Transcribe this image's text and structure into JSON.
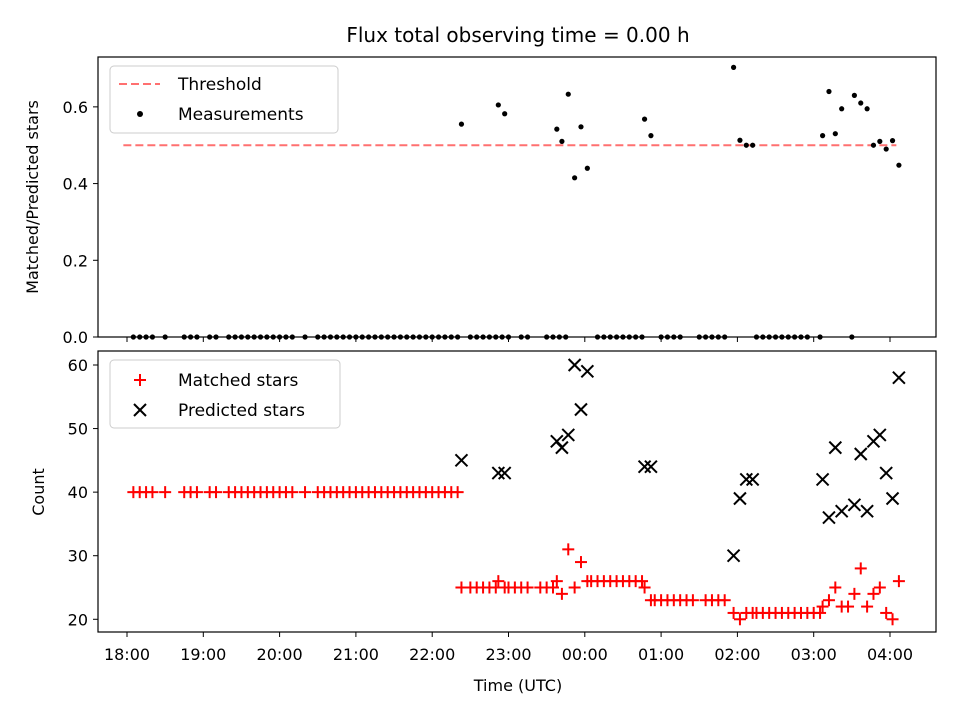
{
  "chart_data": [
    {
      "type": "scatter",
      "title": "Flux total observing time = 0.00 h",
      "ylabel": "Matched/Predicted stars",
      "xlabel": "",
      "ylim": [
        0,
        0.73
      ],
      "yticks": [
        "0.0",
        "0.2",
        "0.4",
        "0.6"
      ],
      "legend_position": "top-left",
      "threshold": {
        "name": "Threshold",
        "value": 0.5,
        "x_range": [
          "18:05",
          "04:05"
        ],
        "color": "#ff7070",
        "style": "dashed"
      },
      "series": [
        {
          "name": "Measurements",
          "color": "#000000",
          "marker": "dot",
          "points": [
            [
              "18:05",
              0
            ],
            [
              "18:10",
              0
            ],
            [
              "18:15",
              0
            ],
            [
              "18:20",
              0
            ],
            [
              "18:30",
              0
            ],
            [
              "18:45",
              0
            ],
            [
              "18:50",
              0
            ],
            [
              "18:55",
              0
            ],
            [
              "19:05",
              0
            ],
            [
              "19:10",
              0
            ],
            [
              "19:20",
              0
            ],
            [
              "19:25",
              0
            ],
            [
              "19:30",
              0
            ],
            [
              "19:35",
              0
            ],
            [
              "19:40",
              0
            ],
            [
              "19:45",
              0
            ],
            [
              "19:50",
              0
            ],
            [
              "19:55",
              0
            ],
            [
              "20:00",
              0
            ],
            [
              "20:05",
              0
            ],
            [
              "20:10",
              0
            ],
            [
              "20:20",
              0
            ],
            [
              "20:30",
              0
            ],
            [
              "20:35",
              0
            ],
            [
              "20:40",
              0
            ],
            [
              "20:45",
              0
            ],
            [
              "20:50",
              0
            ],
            [
              "20:55",
              0
            ],
            [
              "21:00",
              0
            ],
            [
              "21:05",
              0
            ],
            [
              "21:10",
              0
            ],
            [
              "21:15",
              0
            ],
            [
              "21:20",
              0
            ],
            [
              "21:25",
              0
            ],
            [
              "21:30",
              0
            ],
            [
              "21:35",
              0
            ],
            [
              "21:40",
              0
            ],
            [
              "21:45",
              0
            ],
            [
              "21:50",
              0
            ],
            [
              "21:55",
              0
            ],
            [
              "22:00",
              0
            ],
            [
              "22:05",
              0
            ],
            [
              "22:10",
              0
            ],
            [
              "22:15",
              0
            ],
            [
              "22:20",
              0
            ],
            [
              "22:30",
              0
            ],
            [
              "22:35",
              0
            ],
            [
              "22:40",
              0
            ],
            [
              "22:45",
              0
            ],
            [
              "22:50",
              0
            ],
            [
              "22:55",
              0
            ],
            [
              "23:00",
              0
            ],
            [
              "23:10",
              0
            ],
            [
              "23:15",
              0
            ],
            [
              "23:30",
              0
            ],
            [
              "23:35",
              0
            ],
            [
              "23:40",
              0
            ],
            [
              "23:45",
              0
            ],
            [
              "00:10",
              0
            ],
            [
              "00:15",
              0
            ],
            [
              "00:20",
              0
            ],
            [
              "00:25",
              0
            ],
            [
              "00:30",
              0
            ],
            [
              "00:35",
              0
            ],
            [
              "00:40",
              0
            ],
            [
              "00:45",
              0
            ],
            [
              "01:00",
              0
            ],
            [
              "01:05",
              0
            ],
            [
              "01:10",
              0
            ],
            [
              "01:15",
              0
            ],
            [
              "01:30",
              0
            ],
            [
              "01:35",
              0
            ],
            [
              "01:40",
              0
            ],
            [
              "01:45",
              0
            ],
            [
              "01:50",
              0
            ],
            [
              "02:15",
              0
            ],
            [
              "02:20",
              0
            ],
            [
              "02:25",
              0
            ],
            [
              "02:30",
              0
            ],
            [
              "02:35",
              0
            ],
            [
              "02:40",
              0
            ],
            [
              "02:45",
              0
            ],
            [
              "02:50",
              0
            ],
            [
              "02:55",
              0
            ],
            [
              "03:05",
              0
            ],
            [
              "03:30",
              0
            ],
            [
              "22:23",
              0.555
            ],
            [
              "22:52",
              0.605
            ],
            [
              "22:57",
              0.582
            ],
            [
              "23:38",
              0.542
            ],
            [
              "23:42",
              0.51
            ],
            [
              "23:47",
              0.633
            ],
            [
              "23:52",
              0.415
            ],
            [
              "23:57",
              0.548
            ],
            [
              "00:02",
              0.44
            ],
            [
              "00:47",
              0.568
            ],
            [
              "00:52",
              0.525
            ],
            [
              "01:57",
              0.703
            ],
            [
              "02:02",
              0.513
            ],
            [
              "02:07",
              0.5
            ],
            [
              "02:12",
              0.5
            ],
            [
              "03:07",
              0.525
            ],
            [
              "03:12",
              0.64
            ],
            [
              "03:17",
              0.53
            ],
            [
              "03:22",
              0.595
            ],
            [
              "03:32",
              0.63
            ],
            [
              "03:37",
              0.61
            ],
            [
              "03:42",
              0.595
            ],
            [
              "03:47",
              0.5
            ],
            [
              "03:52",
              0.51
            ],
            [
              "03:57",
              0.49
            ],
            [
              "04:02",
              0.512
            ],
            [
              "04:07",
              0.448
            ]
          ]
        }
      ]
    },
    {
      "type": "scatter",
      "title": "",
      "xlabel": "Time (UTC)",
      "ylabel": "Count",
      "ylim": [
        18,
        62.2
      ],
      "yticks": [
        "20",
        "30",
        "40",
        "50",
        "60"
      ],
      "xticks": [
        "18:00",
        "19:00",
        "20:00",
        "21:00",
        "22:00",
        "23:00",
        "00:00",
        "01:00",
        "02:00",
        "03:00",
        "04:00"
      ],
      "legend_position": "top-left",
      "series": [
        {
          "name": "Matched stars",
          "color": "#ff0000",
          "marker": "plus",
          "points": [
            [
              "18:05",
              40
            ],
            [
              "18:10",
              40
            ],
            [
              "18:15",
              40
            ],
            [
              "18:20",
              40
            ],
            [
              "18:30",
              40
            ],
            [
              "18:45",
              40
            ],
            [
              "18:50",
              40
            ],
            [
              "18:55",
              40
            ],
            [
              "19:05",
              40
            ],
            [
              "19:10",
              40
            ],
            [
              "19:20",
              40
            ],
            [
              "19:25",
              40
            ],
            [
              "19:30",
              40
            ],
            [
              "19:35",
              40
            ],
            [
              "19:40",
              40
            ],
            [
              "19:45",
              40
            ],
            [
              "19:50",
              40
            ],
            [
              "19:55",
              40
            ],
            [
              "20:00",
              40
            ],
            [
              "20:05",
              40
            ],
            [
              "20:10",
              40
            ],
            [
              "20:20",
              40
            ],
            [
              "20:30",
              40
            ],
            [
              "20:35",
              40
            ],
            [
              "20:40",
              40
            ],
            [
              "20:45",
              40
            ],
            [
              "20:50",
              40
            ],
            [
              "20:55",
              40
            ],
            [
              "21:00",
              40
            ],
            [
              "21:05",
              40
            ],
            [
              "21:10",
              40
            ],
            [
              "21:15",
              40
            ],
            [
              "21:20",
              40
            ],
            [
              "21:25",
              40
            ],
            [
              "21:30",
              40
            ],
            [
              "21:35",
              40
            ],
            [
              "21:40",
              40
            ],
            [
              "21:45",
              40
            ],
            [
              "21:50",
              40
            ],
            [
              "21:55",
              40
            ],
            [
              "22:00",
              40
            ],
            [
              "22:05",
              40
            ],
            [
              "22:10",
              40
            ],
            [
              "22:15",
              40
            ],
            [
              "22:20",
              40
            ],
            [
              "22:23",
              25
            ],
            [
              "22:30",
              25
            ],
            [
              "22:35",
              25
            ],
            [
              "22:40",
              25
            ],
            [
              "22:45",
              25
            ],
            [
              "22:50",
              25
            ],
            [
              "22:52",
              26
            ],
            [
              "22:57",
              25
            ],
            [
              "23:00",
              25
            ],
            [
              "23:05",
              25
            ],
            [
              "23:10",
              25
            ],
            [
              "23:15",
              25
            ],
            [
              "23:25",
              25
            ],
            [
              "23:30",
              25
            ],
            [
              "23:35",
              25
            ],
            [
              "23:38",
              26
            ],
            [
              "23:42",
              24
            ],
            [
              "23:47",
              31
            ],
            [
              "23:52",
              25
            ],
            [
              "23:57",
              29
            ],
            [
              "00:02",
              26
            ],
            [
              "00:05",
              26
            ],
            [
              "00:10",
              26
            ],
            [
              "00:15",
              26
            ],
            [
              "00:20",
              26
            ],
            [
              "00:25",
              26
            ],
            [
              "00:30",
              26
            ],
            [
              "00:35",
              26
            ],
            [
              "00:40",
              26
            ],
            [
              "00:45",
              26
            ],
            [
              "00:47",
              25
            ],
            [
              "00:52",
              23
            ],
            [
              "00:55",
              23
            ],
            [
              "01:00",
              23
            ],
            [
              "01:05",
              23
            ],
            [
              "01:10",
              23
            ],
            [
              "01:15",
              23
            ],
            [
              "01:20",
              23
            ],
            [
              "01:25",
              23
            ],
            [
              "01:35",
              23
            ],
            [
              "01:40",
              23
            ],
            [
              "01:45",
              23
            ],
            [
              "01:50",
              23
            ],
            [
              "01:57",
              21
            ],
            [
              "02:02",
              20
            ],
            [
              "02:07",
              21
            ],
            [
              "02:12",
              21
            ],
            [
              "02:15",
              21
            ],
            [
              "02:20",
              21
            ],
            [
              "02:25",
              21
            ],
            [
              "02:30",
              21
            ],
            [
              "02:35",
              21
            ],
            [
              "02:40",
              21
            ],
            [
              "02:45",
              21
            ],
            [
              "02:50",
              21
            ],
            [
              "02:55",
              21
            ],
            [
              "03:00",
              21
            ],
            [
              "03:05",
              21
            ],
            [
              "03:07",
              22
            ],
            [
              "03:12",
              23
            ],
            [
              "03:17",
              25
            ],
            [
              "03:22",
              22
            ],
            [
              "03:27",
              22
            ],
            [
              "03:32",
              24
            ],
            [
              "03:37",
              28
            ],
            [
              "03:42",
              22
            ],
            [
              "03:47",
              24
            ],
            [
              "03:52",
              25
            ],
            [
              "03:57",
              21
            ],
            [
              "04:02",
              20
            ],
            [
              "04:07",
              26
            ]
          ]
        },
        {
          "name": "Predicted stars",
          "color": "#000000",
          "marker": "x",
          "points": [
            [
              "22:23",
              45
            ],
            [
              "22:52",
              43
            ],
            [
              "22:57",
              43
            ],
            [
              "23:38",
              48
            ],
            [
              "23:42",
              47
            ],
            [
              "23:47",
              49
            ],
            [
              "23:52",
              60
            ],
            [
              "23:57",
              53
            ],
            [
              "00:02",
              59
            ],
            [
              "00:47",
              44
            ],
            [
              "00:52",
              44
            ],
            [
              "01:57",
              30
            ],
            [
              "02:02",
              39
            ],
            [
              "02:07",
              42
            ],
            [
              "02:12",
              42
            ],
            [
              "03:07",
              42
            ],
            [
              "03:12",
              36
            ],
            [
              "03:17",
              47
            ],
            [
              "03:22",
              37
            ],
            [
              "03:32",
              38
            ],
            [
              "03:37",
              46
            ],
            [
              "03:42",
              37
            ],
            [
              "03:47",
              48
            ],
            [
              "03:52",
              49
            ],
            [
              "03:57",
              43
            ],
            [
              "04:02",
              39
            ],
            [
              "04:07",
              58
            ]
          ]
        }
      ]
    }
  ]
}
